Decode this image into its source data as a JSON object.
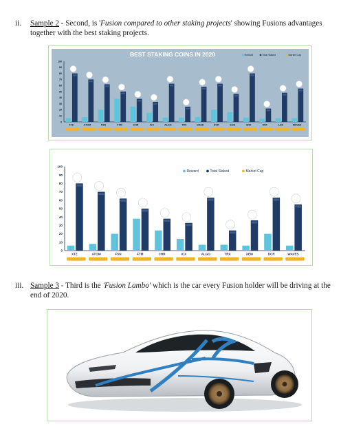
{
  "section_ii": {
    "number": "ii.",
    "link": "Sample 2",
    "text_a": " - Second, is ",
    "title": "Fusion compared to other staking projects",
    "text_b": "' showing Fusions advantages together with the best staking projects."
  },
  "section_iii": {
    "number": "iii.",
    "link": "Sample 3",
    "text_a": " - Third is the ",
    "title": "'Fusion Lambo'",
    "text_b": " which is the car every Fusion holder will be driving at the end of 2020."
  },
  "colors": {
    "reward": "#5ec4db",
    "staked": "#1f3b66",
    "market": "#f0b429",
    "panel": "#a7bccd",
    "frame": "#b9dbb1"
  },
  "chart_data": [
    {
      "type": "bar",
      "title": "BEST STAKING COINS IN 2020",
      "legend_position": "top-right",
      "legend": [
        "Reward",
        "Total Staked",
        "Market Cap"
      ],
      "categories": [
        "XTZ",
        "ATOM",
        "FSN",
        "FTM",
        "CHR",
        "ICX",
        "ALGO",
        "TRX",
        "DASH",
        "DCR",
        "EOS",
        "SNX",
        "ONT",
        "LSK",
        "WAVES"
      ],
      "series": [
        {
          "name": "Reward",
          "values": [
            6,
            8,
            20,
            38,
            25,
            15,
            7,
            7,
            8,
            20,
            16,
            7,
            5,
            6,
            6
          ]
        },
        {
          "name": "Total Staked",
          "values": [
            80,
            70,
            62,
            50,
            38,
            33,
            63,
            25,
            58,
            63,
            46,
            80,
            22,
            48,
            55
          ]
        }
      ],
      "yticks": [
        "100",
        "90",
        "80",
        "70",
        "60",
        "50",
        "40",
        "30",
        "20",
        "10",
        "0"
      ],
      "ylim": [
        0,
        100
      ]
    },
    {
      "type": "bar",
      "legend_position": "top-right",
      "legend": [
        "Reward",
        "Total Staked",
        "Market Cap"
      ],
      "categories": [
        "XTZ",
        "ATOM",
        "FSN",
        "FTM",
        "CHR",
        "ICX",
        "ALGO",
        "TRX",
        "XEM",
        "DCR",
        "WAVES"
      ],
      "series": [
        {
          "name": "Reward",
          "values": [
            6,
            8,
            20,
            38,
            24,
            14,
            7,
            7,
            6,
            20,
            6
          ]
        },
        {
          "name": "Total Staked",
          "values": [
            80,
            70,
            62,
            50,
            38,
            33,
            63,
            24,
            36,
            63,
            55
          ]
        }
      ],
      "yticks": [
        "100",
        "90",
        "80",
        "70",
        "60",
        "50",
        "40",
        "30",
        "20",
        "10",
        "0"
      ],
      "ylim": [
        0,
        100
      ]
    }
  ]
}
